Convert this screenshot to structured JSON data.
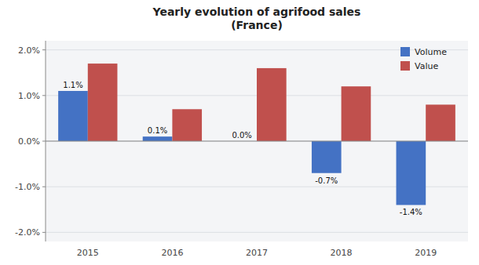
{
  "chart_data": {
    "type": "bar",
    "title": "Yearly evolution of agrifood sales\n(France)",
    "categories": [
      "2015",
      "2016",
      "2017",
      "2018",
      "2019"
    ],
    "series": [
      {
        "name": "Volume",
        "color": "#4472C4",
        "values": [
          0.011,
          0.001,
          0.0,
          -0.007,
          -0.014
        ],
        "value_labels": [
          "1.1%",
          "0.1%",
          "0.0%",
          "-0.7%",
          "-1.4%"
        ]
      },
      {
        "name": "Value",
        "color": "#C0504D",
        "values": [
          0.017,
          0.007,
          0.016,
          0.012,
          0.008
        ]
      }
    ],
    "ylim": [
      -0.022,
      0.022
    ],
    "yticks": [
      {
        "value": -0.02,
        "label": "-2.0%"
      },
      {
        "value": -0.01,
        "label": "-1.0%"
      },
      {
        "value": 0.0,
        "label": "0.0%"
      },
      {
        "value": 0.01,
        "label": "1.0%"
      },
      {
        "value": 0.02,
        "label": "2.0%"
      }
    ],
    "grid": true,
    "legend": "upper right"
  }
}
